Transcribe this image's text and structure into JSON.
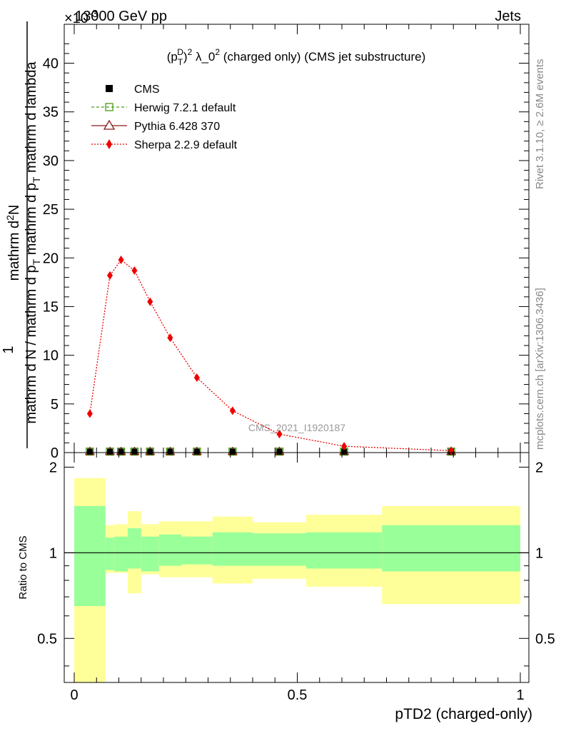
{
  "header": {
    "left_label": "13000 GeV pp",
    "right_label": "Jets",
    "exponent_label": "×10",
    "exponent_power": "-3"
  },
  "side_labels": {
    "rivet": "Rivet 3.1.10, ≥ 2.6M events",
    "mcplots": "mcplots.cern.ch [arXiv:1306.3436]"
  },
  "chart_data": [
    {
      "type": "line",
      "panel": "main",
      "title": "(p_T^D)^2 λ_0^2 (charged only) (CMS jet substructure)",
      "title_parts": {
        "p": "(p",
        "sub": "T",
        "sup": "D",
        "after_sup": ")",
        "sq1": "2",
        "mid": " λ_0",
        "sq2": "2",
        "tail": " (charged only) (CMS jet substructure)"
      },
      "ylabel": {
        "line1": "1",
        "line2a": "mathrm d N / mathrm d p",
        "line2b": "mathrm d p",
        "line2c": "mathrm d lambda",
        "line1_full": "mathrm d",
        "line1_sup": "2",
        "line1_tail": "N",
        "sub": "T"
      },
      "xlim": [
        0,
        1
      ],
      "ylim": [
        0,
        44
      ],
      "yticks": [
        0,
        5,
        10,
        15,
        20,
        25,
        30,
        35,
        40
      ],
      "watermark": "CMS_2021_I1920187",
      "legend_position": "top-left",
      "series": [
        {
          "name": "CMS",
          "style": "black-square-markers",
          "x": [
            0.035,
            0.08,
            0.105,
            0.135,
            0.17,
            0.215,
            0.275,
            0.355,
            0.46,
            0.605,
            0.845
          ],
          "values": [
            0.1,
            0.1,
            0.1,
            0.1,
            0.1,
            0.1,
            0.1,
            0.1,
            0.1,
            0.1,
            0.1
          ]
        },
        {
          "name": "Herwig 7.2.1 default",
          "style": "green-dashed-open-square",
          "x": [
            0.035,
            0.08,
            0.105,
            0.135,
            0.17,
            0.215,
            0.275,
            0.355,
            0.46,
            0.605,
            0.845
          ],
          "values": [
            0.1,
            0.1,
            0.1,
            0.1,
            0.1,
            0.1,
            0.1,
            0.1,
            0.1,
            0.1,
            0.1
          ]
        },
        {
          "name": "Pythia 6.428 370",
          "style": "darkred-solid-open-triangle",
          "x": [
            0.035,
            0.08,
            0.105,
            0.135,
            0.17,
            0.215,
            0.275,
            0.355,
            0.46,
            0.605,
            0.845
          ],
          "values": [
            0.1,
            0.1,
            0.1,
            0.1,
            0.1,
            0.1,
            0.1,
            0.1,
            0.1,
            0.1,
            0.1
          ]
        },
        {
          "name": "Sherpa 2.2.9 default",
          "style": "red-dotted-diamond",
          "x": [
            0.035,
            0.08,
            0.105,
            0.135,
            0.17,
            0.215,
            0.275,
            0.355,
            0.46,
            0.605,
            0.845
          ],
          "values": [
            4.0,
            18.2,
            19.8,
            18.7,
            15.5,
            11.8,
            7.7,
            4.3,
            1.9,
            0.65,
            0.2
          ]
        }
      ]
    },
    {
      "type": "area",
      "panel": "ratio",
      "ylabel": "Ratio to CMS",
      "xlabel": "pTD2 (charged-only)",
      "xlim": [
        0,
        1
      ],
      "ylim": [
        0.35,
        2.25
      ],
      "xticks": [
        0,
        0.5,
        1
      ],
      "xtick_labels": [
        "0",
        "0.5",
        "1"
      ],
      "yticks": [
        0.5,
        1,
        2
      ],
      "ytick_labels": [
        "0.5",
        "1",
        "2"
      ],
      "reference_line": 1,
      "bins": [
        {
          "lo": 0.0,
          "hi": 0.07,
          "green": [
            0.65,
            1.46
          ],
          "yellow": [
            0.34,
            1.83
          ]
        },
        {
          "lo": 0.07,
          "hi": 0.09,
          "green": [
            0.87,
            1.13
          ],
          "yellow": [
            0.85,
            1.25
          ]
        },
        {
          "lo": 0.09,
          "hi": 0.12,
          "green": [
            0.86,
            1.14
          ],
          "yellow": [
            0.85,
            1.26
          ]
        },
        {
          "lo": 0.12,
          "hi": 0.15,
          "green": [
            0.88,
            1.22
          ],
          "yellow": [
            0.72,
            1.4
          ]
        },
        {
          "lo": 0.15,
          "hi": 0.19,
          "green": [
            0.86,
            1.14
          ],
          "yellow": [
            0.84,
            1.26
          ]
        },
        {
          "lo": 0.19,
          "hi": 0.24,
          "green": [
            0.9,
            1.16
          ],
          "yellow": [
            0.82,
            1.29
          ]
        },
        {
          "lo": 0.24,
          "hi": 0.31,
          "green": [
            0.91,
            1.14
          ],
          "yellow": [
            0.82,
            1.29
          ]
        },
        {
          "lo": 0.31,
          "hi": 0.4,
          "green": [
            0.9,
            1.18
          ],
          "yellow": [
            0.78,
            1.34
          ]
        },
        {
          "lo": 0.4,
          "hi": 0.52,
          "green": [
            0.9,
            1.17
          ],
          "yellow": [
            0.81,
            1.28
          ]
        },
        {
          "lo": 0.52,
          "hi": 0.69,
          "green": [
            0.88,
            1.18
          ],
          "yellow": [
            0.76,
            1.36
          ]
        },
        {
          "lo": 0.69,
          "hi": 1.0,
          "green": [
            0.86,
            1.25
          ],
          "yellow": [
            0.66,
            1.46
          ]
        }
      ]
    }
  ]
}
